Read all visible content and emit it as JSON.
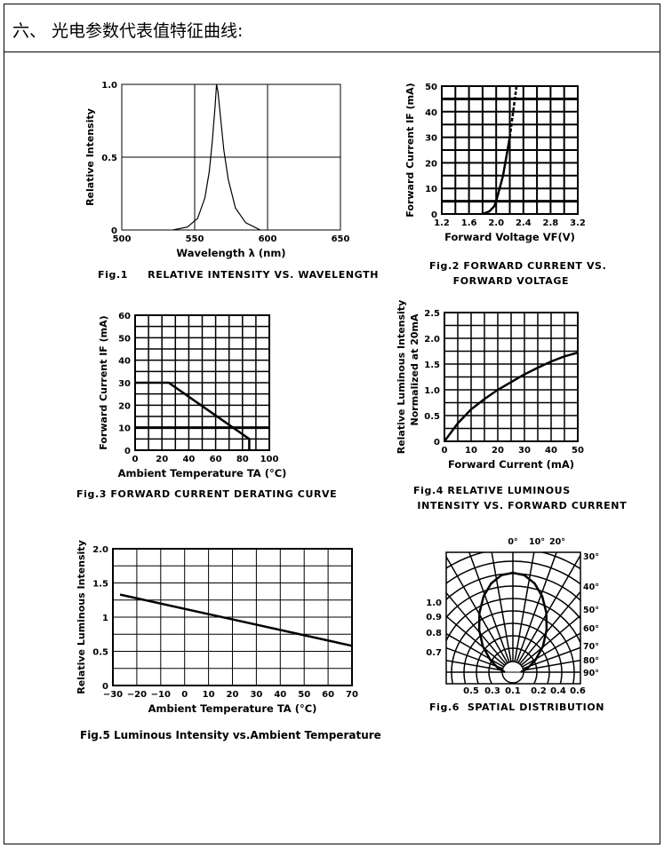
{
  "page_title": "六、 光电参数代表值特征曲线:",
  "chart_data": [
    {
      "id": "fig1",
      "type": "line",
      "caption": "Fig.1     RELATIVE INTENSITY VS. WAVELENGTH",
      "xlabel": "Wavelength λ (nm)",
      "ylabel": "Relative Intensity",
      "xlim": [
        500,
        650
      ],
      "ylim": [
        0,
        1
      ],
      "xticks": [
        "500",
        "550",
        "600",
        "650"
      ],
      "yticks": [
        "0",
        "0.5",
        "1.0"
      ],
      "grid": true,
      "series": [
        {
          "name": "intensity",
          "x": [
            535,
            545,
            552,
            557,
            560,
            562,
            564,
            565,
            566,
            568,
            570,
            573,
            578,
            585,
            595
          ],
          "y": [
            0,
            0.02,
            0.08,
            0.22,
            0.4,
            0.6,
            0.85,
            1.0,
            0.95,
            0.75,
            0.55,
            0.35,
            0.15,
            0.05,
            0
          ]
        }
      ]
    },
    {
      "id": "fig2",
      "type": "line",
      "caption": "Fig.2 FORWARD CURRENT VS.\n      FORWARD VOLTAGE",
      "xlabel": "Forward Voltage VF(V)",
      "ylabel": "Forward Current IF (mA)",
      "xlim": [
        1.2,
        3.2
      ],
      "ylim": [
        0,
        50
      ],
      "xticks": [
        "1.2",
        "1.6",
        "2.0",
        "2.4",
        "2.8",
        "3.2"
      ],
      "yticks": [
        "0",
        "10",
        "20",
        "30",
        "40",
        "50"
      ],
      "grid": true,
      "series": [
        {
          "name": "solid",
          "x": [
            1.8,
            1.9,
            1.97,
            2.0,
            2.1,
            2.2
          ],
          "y": [
            0,
            1,
            3,
            5,
            15,
            30
          ]
        },
        {
          "name": "dashed",
          "x": [
            2.2,
            2.3
          ],
          "y": [
            30,
            50
          ]
        }
      ]
    },
    {
      "id": "fig3",
      "type": "line",
      "caption": "Fig.3 FORWARD CURRENT DERATING CURVE",
      "xlabel": "Ambient Temperature TA (°C)",
      "ylabel": "Forward Current IF (mA)",
      "xlim": [
        0,
        100
      ],
      "ylim": [
        0,
        60
      ],
      "xticks": [
        "0",
        "20",
        "40",
        "60",
        "80",
        "100"
      ],
      "yticks": [
        "0",
        "10",
        "20",
        "30",
        "40",
        "50",
        "60"
      ],
      "grid": true,
      "series": [
        {
          "name": "derating",
          "x": [
            0,
            25,
            85,
            85
          ],
          "y": [
            30,
            30,
            5,
            0
          ]
        }
      ]
    },
    {
      "id": "fig4",
      "type": "line",
      "caption": "Fig.4 RELATIVE LUMINOUS\n INTENSITY VS. FORWARD CURRENT",
      "xlabel": "Forward Current (mA)",
      "ylabel": "Relative Luminous Intensity",
      "ylabel2": "Normalized at 20mA",
      "xlim": [
        0,
        50
      ],
      "ylim": [
        0,
        2.5
      ],
      "xticks": [
        "0",
        "10",
        "20",
        "30",
        "40",
        "50"
      ],
      "yticks": [
        "0",
        "0.5",
        "1.0",
        "1.5",
        "2.0",
        "2.5"
      ],
      "grid": true,
      "series": [
        {
          "name": "intensity",
          "x": [
            0,
            5,
            10,
            15,
            20,
            25,
            30,
            35,
            40,
            45,
            50
          ],
          "y": [
            0,
            0.35,
            0.62,
            0.82,
            1.0,
            1.15,
            1.3,
            1.43,
            1.55,
            1.65,
            1.72
          ]
        }
      ]
    },
    {
      "id": "fig5",
      "type": "line",
      "caption": "Fig.5 Luminous Intensity vs.Ambient Temperature",
      "xlabel": "Ambient Temperature TA (°C)",
      "ylabel": "Relative Luminous Intensity",
      "xlim": [
        -30,
        70
      ],
      "ylim": [
        0,
        2
      ],
      "xticks": [
        "−30",
        "−20",
        "−10",
        "0",
        "10",
        "20",
        "30",
        "40",
        "50",
        "60",
        "70"
      ],
      "yticks": [
        "0",
        "0.5",
        "1",
        "1.5",
        "2.0"
      ],
      "grid": true,
      "series": [
        {
          "name": "intensity",
          "x": [
            -27,
            70
          ],
          "y": [
            1.33,
            0.58
          ]
        }
      ]
    },
    {
      "id": "fig6",
      "type": "polar",
      "caption": "Fig.6  SPATIAL DISTRIBUTION",
      "angle_ticks": [
        "0°",
        "10°",
        "20°",
        "30°",
        "40°",
        "50°",
        "60°",
        "70°",
        "80°",
        "90°"
      ],
      "radial_ticks_left": [
        "1.0",
        "0.9",
        "0.8",
        "0.7"
      ],
      "bottom_ticks": [
        "0.5",
        "0.3",
        "0.1",
        "0.2",
        "0.4",
        "0.6"
      ],
      "grid": true,
      "series": [
        {
          "name": "pattern",
          "angle": [
            -90,
            -80,
            -70,
            -60,
            -50,
            -40,
            -30,
            -20,
            -10,
            0,
            10,
            20,
            30,
            40,
            50,
            60,
            70,
            80,
            90
          ],
          "r": [
            0.12,
            0.22,
            0.36,
            0.52,
            0.66,
            0.78,
            0.88,
            0.95,
            0.99,
            1.0,
            0.99,
            0.95,
            0.88,
            0.78,
            0.66,
            0.52,
            0.36,
            0.22,
            0.12
          ]
        }
      ]
    }
  ]
}
